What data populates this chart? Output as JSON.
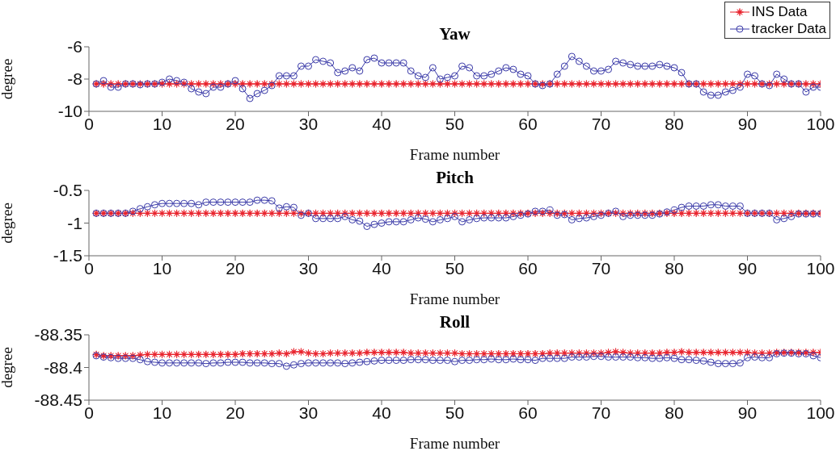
{
  "chart_data": [
    {
      "type": "line",
      "title": "Yaw",
      "xlabel": "Frame number",
      "ylabel": "degree",
      "xlim": [
        0,
        100
      ],
      "xticks": [
        0,
        10,
        20,
        30,
        40,
        50,
        60,
        70,
        80,
        90,
        100
      ],
      "ylim": [
        -10,
        -6
      ],
      "yticks": [
        -10,
        -8,
        -6
      ],
      "legend": "top right",
      "x": [
        1,
        2,
        3,
        4,
        5,
        6,
        7,
        8,
        9,
        10,
        11,
        12,
        13,
        14,
        15,
        16,
        17,
        18,
        19,
        20,
        21,
        22,
        23,
        24,
        25,
        26,
        27,
        28,
        29,
        30,
        31,
        32,
        33,
        34,
        35,
        36,
        37,
        38,
        39,
        40,
        41,
        42,
        43,
        44,
        45,
        46,
        47,
        48,
        49,
        50,
        51,
        52,
        53,
        54,
        55,
        56,
        57,
        58,
        59,
        60,
        61,
        62,
        63,
        64,
        65,
        66,
        67,
        68,
        69,
        70,
        71,
        72,
        73,
        74,
        75,
        76,
        77,
        78,
        79,
        80,
        81,
        82,
        83,
        84,
        85,
        86,
        87,
        88,
        89,
        90,
        91,
        92,
        93,
        94,
        95,
        96,
        97,
        98,
        99,
        100
      ],
      "series": [
        {
          "name": "INS Data",
          "color": "#e8202a",
          "marker": "star",
          "values": [
            -8.3,
            -8.3,
            -8.3,
            -8.3,
            -8.3,
            -8.3,
            -8.3,
            -8.3,
            -8.3,
            -8.3,
            -8.3,
            -8.3,
            -8.3,
            -8.3,
            -8.3,
            -8.3,
            -8.3,
            -8.3,
            -8.3,
            -8.3,
            -8.3,
            -8.3,
            -8.3,
            -8.3,
            -8.3,
            -8.3,
            -8.3,
            -8.3,
            -8.3,
            -8.3,
            -8.3,
            -8.3,
            -8.3,
            -8.3,
            -8.3,
            -8.3,
            -8.3,
            -8.3,
            -8.3,
            -8.3,
            -8.3,
            -8.3,
            -8.3,
            -8.3,
            -8.3,
            -8.3,
            -8.3,
            -8.3,
            -8.3,
            -8.3,
            -8.3,
            -8.3,
            -8.3,
            -8.3,
            -8.3,
            -8.3,
            -8.3,
            -8.3,
            -8.3,
            -8.3,
            -8.3,
            -8.3,
            -8.3,
            -8.3,
            -8.3,
            -8.3,
            -8.3,
            -8.3,
            -8.3,
            -8.3,
            -8.3,
            -8.3,
            -8.3,
            -8.3,
            -8.3,
            -8.3,
            -8.3,
            -8.3,
            -8.3,
            -8.3,
            -8.3,
            -8.3,
            -8.3,
            -8.3,
            -8.3,
            -8.3,
            -8.3,
            -8.3,
            -8.3,
            -8.3,
            -8.3,
            -8.3,
            -8.3,
            -8.3,
            -8.3,
            -8.3,
            -8.3,
            -8.3,
            -8.3,
            -8.3
          ]
        },
        {
          "name": "tracker Data",
          "color": "#3a3aa8",
          "marker": "circle",
          "values": [
            -8.3,
            -8.1,
            -8.5,
            -8.5,
            -8.3,
            -8.3,
            -8.35,
            -8.3,
            -8.3,
            -8.2,
            -8.0,
            -8.1,
            -8.2,
            -8.6,
            -8.8,
            -8.9,
            -8.5,
            -8.5,
            -8.3,
            -8.1,
            -8.6,
            -9.2,
            -8.9,
            -8.7,
            -8.4,
            -7.8,
            -7.8,
            -7.8,
            -7.2,
            -7.2,
            -6.8,
            -6.9,
            -7.0,
            -7.6,
            -7.5,
            -7.3,
            -7.5,
            -6.8,
            -6.7,
            -7.0,
            -7.0,
            -7.0,
            -7.0,
            -7.5,
            -7.8,
            -7.9,
            -7.3,
            -8.0,
            -7.9,
            -7.8,
            -7.2,
            -7.3,
            -7.8,
            -7.8,
            -7.7,
            -7.5,
            -7.3,
            -7.4,
            -7.7,
            -7.8,
            -8.3,
            -8.4,
            -8.3,
            -7.7,
            -7.2,
            -6.6,
            -6.9,
            -7.2,
            -7.5,
            -7.5,
            -7.4,
            -6.9,
            -7.0,
            -7.1,
            -7.2,
            -7.2,
            -7.2,
            -7.1,
            -7.2,
            -7.3,
            -7.6,
            -8.3,
            -8.3,
            -8.8,
            -9.0,
            -9.0,
            -8.8,
            -8.7,
            -8.5,
            -7.7,
            -7.8,
            -8.3,
            -8.4,
            -7.7,
            -8.0,
            -8.3,
            -8.3,
            -8.8,
            -8.5,
            -8.5
          ]
        }
      ]
    },
    {
      "type": "line",
      "title": "Pitch",
      "xlabel": "Frame number",
      "ylabel": "degree",
      "xlim": [
        0,
        100
      ],
      "xticks": [
        0,
        10,
        20,
        30,
        40,
        50,
        60,
        70,
        80,
        90,
        100
      ],
      "ylim": [
        -1.5,
        -0.5
      ],
      "yticks": [
        -1.5,
        -1,
        -0.5
      ],
      "x": [
        1,
        2,
        3,
        4,
        5,
        6,
        7,
        8,
        9,
        10,
        11,
        12,
        13,
        14,
        15,
        16,
        17,
        18,
        19,
        20,
        21,
        22,
        23,
        24,
        25,
        26,
        27,
        28,
        29,
        30,
        31,
        32,
        33,
        34,
        35,
        36,
        37,
        38,
        39,
        40,
        41,
        42,
        43,
        44,
        45,
        46,
        47,
        48,
        49,
        50,
        51,
        52,
        53,
        54,
        55,
        56,
        57,
        58,
        59,
        60,
        61,
        62,
        63,
        64,
        65,
        66,
        67,
        68,
        69,
        70,
        71,
        72,
        73,
        74,
        75,
        76,
        77,
        78,
        79,
        80,
        81,
        82,
        83,
        84,
        85,
        86,
        87,
        88,
        89,
        90,
        91,
        92,
        93,
        94,
        95,
        96,
        97,
        98,
        99,
        100
      ],
      "series": [
        {
          "color": "#e8202a",
          "marker": "star",
          "values": [
            -0.85,
            -0.85,
            -0.85,
            -0.85,
            -0.85,
            -0.85,
            -0.85,
            -0.85,
            -0.85,
            -0.85,
            -0.85,
            -0.85,
            -0.85,
            -0.85,
            -0.85,
            -0.85,
            -0.85,
            -0.85,
            -0.85,
            -0.85,
            -0.85,
            -0.85,
            -0.85,
            -0.85,
            -0.85,
            -0.85,
            -0.85,
            -0.85,
            -0.85,
            -0.85,
            -0.85,
            -0.85,
            -0.85,
            -0.85,
            -0.85,
            -0.85,
            -0.85,
            -0.85,
            -0.85,
            -0.85,
            -0.85,
            -0.85,
            -0.85,
            -0.85,
            -0.85,
            -0.85,
            -0.85,
            -0.85,
            -0.85,
            -0.85,
            -0.85,
            -0.85,
            -0.85,
            -0.85,
            -0.85,
            -0.85,
            -0.85,
            -0.85,
            -0.85,
            -0.85,
            -0.85,
            -0.85,
            -0.85,
            -0.85,
            -0.85,
            -0.85,
            -0.85,
            -0.85,
            -0.85,
            -0.85,
            -0.85,
            -0.85,
            -0.85,
            -0.85,
            -0.85,
            -0.85,
            -0.85,
            -0.85,
            -0.85,
            -0.85,
            -0.85,
            -0.85,
            -0.85,
            -0.85,
            -0.85,
            -0.85,
            -0.85,
            -0.85,
            -0.85,
            -0.85,
            -0.85,
            -0.85,
            -0.85,
            -0.85,
            -0.85,
            -0.85,
            -0.85,
            -0.85,
            -0.85,
            -0.85
          ]
        },
        {
          "color": "#3a3aa8",
          "marker": "circle",
          "values": [
            -0.85,
            -0.85,
            -0.85,
            -0.85,
            -0.85,
            -0.82,
            -0.78,
            -0.75,
            -0.72,
            -0.7,
            -0.7,
            -0.7,
            -0.7,
            -0.7,
            -0.72,
            -0.68,
            -0.68,
            -0.68,
            -0.68,
            -0.68,
            -0.68,
            -0.68,
            -0.65,
            -0.65,
            -0.66,
            -0.77,
            -0.75,
            -0.76,
            -0.88,
            -0.85,
            -0.93,
            -0.93,
            -0.93,
            -0.93,
            -0.9,
            -0.95,
            -0.97,
            -1.05,
            -1.02,
            -1.0,
            -0.98,
            -0.98,
            -0.98,
            -0.95,
            -0.92,
            -0.94,
            -0.98,
            -0.95,
            -0.93,
            -0.9,
            -0.98,
            -0.95,
            -0.93,
            -0.92,
            -0.92,
            -0.92,
            -0.92,
            -0.9,
            -0.88,
            -0.86,
            -0.82,
            -0.82,
            -0.8,
            -0.88,
            -0.87,
            -0.95,
            -0.93,
            -0.92,
            -0.9,
            -0.88,
            -0.85,
            -0.82,
            -0.9,
            -0.88,
            -0.88,
            -0.88,
            -0.88,
            -0.86,
            -0.83,
            -0.8,
            -0.76,
            -0.74,
            -0.74,
            -0.74,
            -0.72,
            -0.72,
            -0.74,
            -0.74,
            -0.74,
            -0.85,
            -0.85,
            -0.85,
            -0.85,
            -0.95,
            -0.93,
            -0.9,
            -0.86,
            -0.86,
            -0.86,
            -0.86
          ]
        }
      ]
    },
    {
      "type": "line",
      "title": "Roll",
      "xlabel": "Frame number",
      "ylabel": "degree",
      "xlim": [
        0,
        100
      ],
      "xticks": [
        0,
        10,
        20,
        30,
        40,
        50,
        60,
        70,
        80,
        90,
        100
      ],
      "ylim": [
        -88.45,
        -88.35
      ],
      "yticks": [
        -88.45,
        -88.4,
        -88.35
      ],
      "x": [
        1,
        2,
        3,
        4,
        5,
        6,
        7,
        8,
        9,
        10,
        11,
        12,
        13,
        14,
        15,
        16,
        17,
        18,
        19,
        20,
        21,
        22,
        23,
        24,
        25,
        26,
        27,
        28,
        29,
        30,
        31,
        32,
        33,
        34,
        35,
        36,
        37,
        38,
        39,
        40,
        41,
        42,
        43,
        44,
        45,
        46,
        47,
        48,
        49,
        50,
        51,
        52,
        53,
        54,
        55,
        56,
        57,
        58,
        59,
        60,
        61,
        62,
        63,
        64,
        65,
        66,
        67,
        68,
        69,
        70,
        71,
        72,
        73,
        74,
        75,
        76,
        77,
        78,
        79,
        80,
        81,
        82,
        83,
        84,
        85,
        86,
        87,
        88,
        89,
        90,
        91,
        92,
        93,
        94,
        95,
        96,
        97,
        98,
        99,
        100
      ],
      "series": [
        {
          "color": "#e8202a",
          "marker": "star",
          "values": [
            -88.38,
            -88.382,
            -88.382,
            -88.382,
            -88.382,
            -88.382,
            -88.381,
            -88.38,
            -88.38,
            -88.38,
            -88.38,
            -88.38,
            -88.38,
            -88.38,
            -88.38,
            -88.38,
            -88.38,
            -88.38,
            -88.38,
            -88.38,
            -88.379,
            -88.379,
            -88.379,
            -88.379,
            -88.379,
            -88.378,
            -88.379,
            -88.376,
            -88.376,
            -88.378,
            -88.379,
            -88.379,
            -88.378,
            -88.378,
            -88.378,
            -88.378,
            -88.378,
            -88.377,
            -88.377,
            -88.377,
            -88.377,
            -88.377,
            -88.377,
            -88.378,
            -88.378,
            -88.378,
            -88.378,
            -88.378,
            -88.378,
            -88.378,
            -88.379,
            -88.379,
            -88.379,
            -88.379,
            -88.379,
            -88.379,
            -88.379,
            -88.379,
            -88.379,
            -88.379,
            -88.379,
            -88.379,
            -88.378,
            -88.378,
            -88.378,
            -88.378,
            -88.378,
            -88.378,
            -88.378,
            -88.378,
            -88.377,
            -88.376,
            -88.377,
            -88.378,
            -88.378,
            -88.378,
            -88.378,
            -88.378,
            -88.377,
            -88.377,
            -88.376,
            -88.377,
            -88.377,
            -88.377,
            -88.377,
            -88.377,
            -88.377,
            -88.377,
            -88.377,
            -88.377,
            -88.378,
            -88.378,
            -88.378,
            -88.377,
            -88.377,
            -88.377,
            -88.377,
            -88.377,
            -88.377,
            -88.377
          ]
        },
        {
          "color": "#3a3aa8",
          "marker": "circle",
          "values": [
            -88.382,
            -88.384,
            -88.385,
            -88.386,
            -88.386,
            -88.386,
            -88.388,
            -88.391,
            -88.392,
            -88.393,
            -88.393,
            -88.393,
            -88.393,
            -88.393,
            -88.393,
            -88.394,
            -88.393,
            -88.393,
            -88.392,
            -88.392,
            -88.392,
            -88.393,
            -88.393,
            -88.393,
            -88.394,
            -88.394,
            -88.398,
            -88.396,
            -88.394,
            -88.393,
            -88.393,
            -88.393,
            -88.393,
            -88.393,
            -88.394,
            -88.393,
            -88.392,
            -88.391,
            -88.39,
            -88.389,
            -88.389,
            -88.389,
            -88.389,
            -88.388,
            -88.388,
            -88.388,
            -88.389,
            -88.389,
            -88.389,
            -88.391,
            -88.389,
            -88.389,
            -88.388,
            -88.388,
            -88.387,
            -88.388,
            -88.388,
            -88.387,
            -88.388,
            -88.388,
            -88.389,
            -88.386,
            -88.386,
            -88.386,
            -88.386,
            -88.384,
            -88.384,
            -88.384,
            -88.383,
            -88.383,
            -88.384,
            -88.384,
            -88.384,
            -88.384,
            -88.385,
            -88.385,
            -88.386,
            -88.386,
            -88.385,
            -88.386,
            -88.388,
            -88.388,
            -88.389,
            -88.39,
            -88.392,
            -88.394,
            -88.394,
            -88.394,
            -88.393,
            -88.385,
            -88.384,
            -88.385,
            -88.385,
            -88.379,
            -88.378,
            -88.378,
            -88.379,
            -88.379,
            -88.382,
            -88.385
          ]
        }
      ]
    }
  ]
}
